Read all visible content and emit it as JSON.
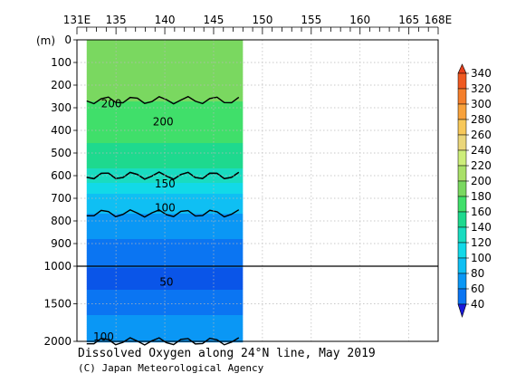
{
  "chart_data": {
    "type": "heatmap",
    "title": "Dissolved Oxygen along 24°N line, May 2019",
    "credit": "(C) Japan Meteorological Agency",
    "y_unit_label": "(m)",
    "x_axis": {
      "range_deg": [
        131,
        168
      ],
      "ticks": [
        131,
        135,
        140,
        145,
        150,
        155,
        160,
        165,
        168
      ],
      "tick_labels": [
        "131E",
        "135",
        "140",
        "145",
        "150",
        "155",
        "160",
        "165",
        "168E"
      ]
    },
    "y_axis": {
      "range_m": [
        0,
        2000
      ],
      "scale_break_m": 1000,
      "ticks": [
        0,
        100,
        200,
        300,
        400,
        500,
        600,
        700,
        800,
        900,
        1000,
        1500,
        2000
      ]
    },
    "data_extent_lon": [
      132,
      148
    ],
    "colorbar": {
      "levels": [
        40,
        60,
        80,
        100,
        120,
        140,
        160,
        180,
        200,
        220,
        240,
        260,
        280,
        300,
        320,
        340
      ],
      "colors": [
        "#0a55e8",
        "#0b75f2",
        "#0a97f5",
        "#0fbff3",
        "#12d9e8",
        "#19dcc0",
        "#1ed98e",
        "#40df6a",
        "#7ad860",
        "#a9e068",
        "#cdee7a",
        "#ead67a",
        "#f7c85a",
        "#f8a23c",
        "#f47f2c",
        "#ef5a22"
      ],
      "under_color": "#1a1adc",
      "over_color": "#e8401c"
    },
    "profile": [
      {
        "depth": 0,
        "value": 215
      },
      {
        "depth": 100,
        "value": 220
      },
      {
        "depth": 200,
        "value": 210
      },
      {
        "depth": 300,
        "value": 195
      },
      {
        "depth": 400,
        "value": 185
      },
      {
        "depth": 500,
        "value": 175
      },
      {
        "depth": 600,
        "value": 150
      },
      {
        "depth": 700,
        "value": 110
      },
      {
        "depth": 800,
        "value": 95
      },
      {
        "depth": 900,
        "value": 75
      },
      {
        "depth": 1000,
        "value": 60
      },
      {
        "depth": 1200,
        "value": 55
      },
      {
        "depth": 1500,
        "value": 70
      },
      {
        "depth": 1800,
        "value": 90
      },
      {
        "depth": 2000,
        "value": 100
      }
    ],
    "contour_labels": [
      {
        "text": "200",
        "lon": 134.3,
        "depth": 285
      },
      {
        "text": "200",
        "lon": 139.6,
        "depth": 365
      },
      {
        "text": "150",
        "lon": 139.8,
        "depth": 640
      },
      {
        "text": "100",
        "lon": 139.8,
        "depth": 745
      },
      {
        "text": "50",
        "lon": 140.3,
        "depth": 1220
      },
      {
        "text": "100",
        "lon": 133.5,
        "depth": 1950
      }
    ]
  }
}
